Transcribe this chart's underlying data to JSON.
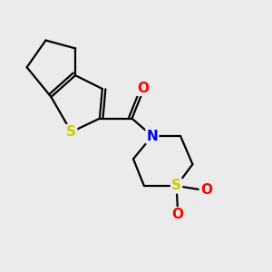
{
  "background_color": "#ebebeb",
  "bond_color": "#000000",
  "bond_lw": 1.6,
  "atom_colors": {
    "S_thio": "#cccc00",
    "S_sulfo": "#cccc00",
    "N": "#0000ee",
    "O_carbonyl": "#ff0000",
    "O_sulfo1": "#ff0000",
    "O_sulfo2": "#ff0000"
  },
  "figsize": [
    3.0,
    3.0
  ],
  "dpi": 100,
  "xlim": [
    0,
    10
  ],
  "ylim": [
    0,
    10
  ]
}
